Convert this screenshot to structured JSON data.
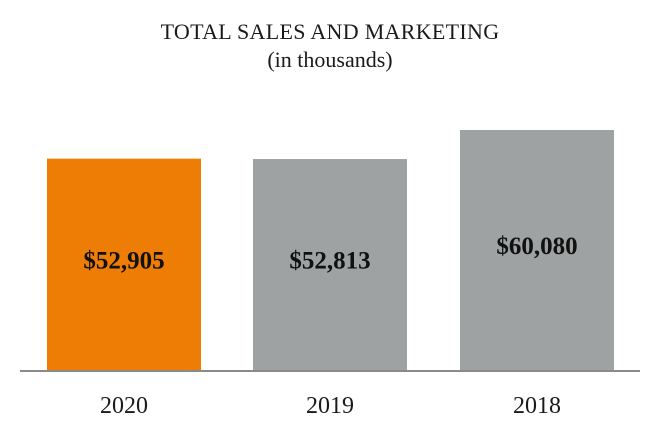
{
  "chart_data": {
    "type": "bar",
    "title": "TOTAL SALES AND MARKETING",
    "subtitle": "(in thousands)",
    "categories": [
      "2020",
      "2019",
      "2018"
    ],
    "values": [
      52905,
      52813,
      60080
    ],
    "value_labels": [
      "$52,905",
      "$52,813",
      "$60,080"
    ],
    "bar_colors": [
      "#ed7d05",
      "#9ea2a2",
      "#9ea2a2"
    ],
    "axis_color": "#8a8a8a",
    "ylim": [
      0,
      60080
    ],
    "grid": false,
    "legend": "none"
  }
}
